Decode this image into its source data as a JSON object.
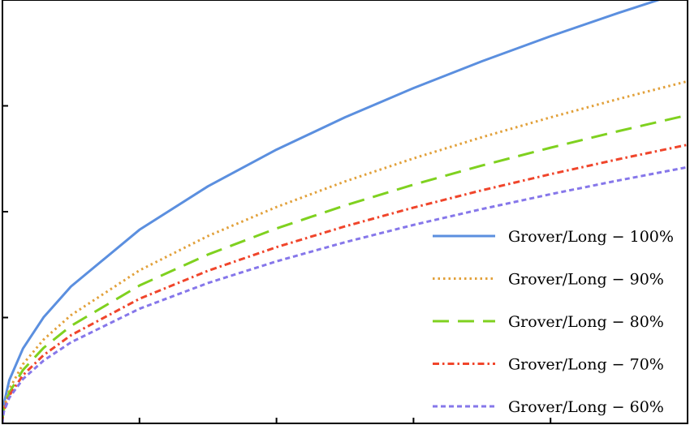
{
  "chart_data": {
    "type": "line",
    "title": "",
    "xlabel": "",
    "ylabel": "",
    "xlim": [
      0,
      1
    ],
    "ylim": [
      0,
      1
    ],
    "legend_position": "bottom-right",
    "x": [
      0,
      0.0003,
      0.002,
      0.01,
      0.03,
      0.06,
      0.1,
      0.2,
      0.3,
      0.4,
      0.5,
      0.6,
      0.7,
      0.8,
      0.9,
      1.0
    ],
    "series": [
      {
        "name": "Grover/Long − 100%",
        "color": "#5b8fdf",
        "dash": "solid",
        "values": [
          0,
          0.0179,
          0.0458,
          0.102,
          0.1768,
          0.2504,
          0.3233,
          0.4573,
          0.56,
          0.6466,
          0.7229,
          0.7919,
          0.8554,
          0.9145,
          0.97,
          1.0225
        ]
      },
      {
        "name": "Grover/Long − 90%",
        "color": "#e2a13b",
        "dash": "dotted",
        "values": [
          0,
          0.0141,
          0.0362,
          0.0808,
          0.1399,
          0.1979,
          0.2555,
          0.3614,
          0.4426,
          0.511,
          0.5714,
          0.6259,
          0.676,
          0.7228,
          0.7666,
          0.8081
        ]
      },
      {
        "name": "Grover/Long − 80%",
        "color": "#7fd11f",
        "dash": "long-dashed",
        "values": [
          0,
          0.0127,
          0.0326,
          0.0728,
          0.1261,
          0.1783,
          0.2302,
          0.3256,
          0.3988,
          0.4604,
          0.5147,
          0.5639,
          0.6091,
          0.6511,
          0.6906,
          0.728
        ]
      },
      {
        "name": "Grover/Long − 70%",
        "color": "#f0452b",
        "dash": "dash-dot",
        "values": [
          0,
          0.0115,
          0.0295,
          0.0658,
          0.1139,
          0.1612,
          0.2081,
          0.2943,
          0.3605,
          0.4162,
          0.4653,
          0.5097,
          0.5506,
          0.5886,
          0.6243,
          0.6581
        ]
      },
      {
        "name": "Grover/Long − 60%",
        "color": "#8677ea",
        "dash": "dashed",
        "values": [
          0,
          0.0106,
          0.0271,
          0.0605,
          0.1048,
          0.1482,
          0.1914,
          0.2707,
          0.3315,
          0.3827,
          0.4279,
          0.4688,
          0.5063,
          0.5413,
          0.5741,
          0.6052
        ]
      }
    ]
  }
}
